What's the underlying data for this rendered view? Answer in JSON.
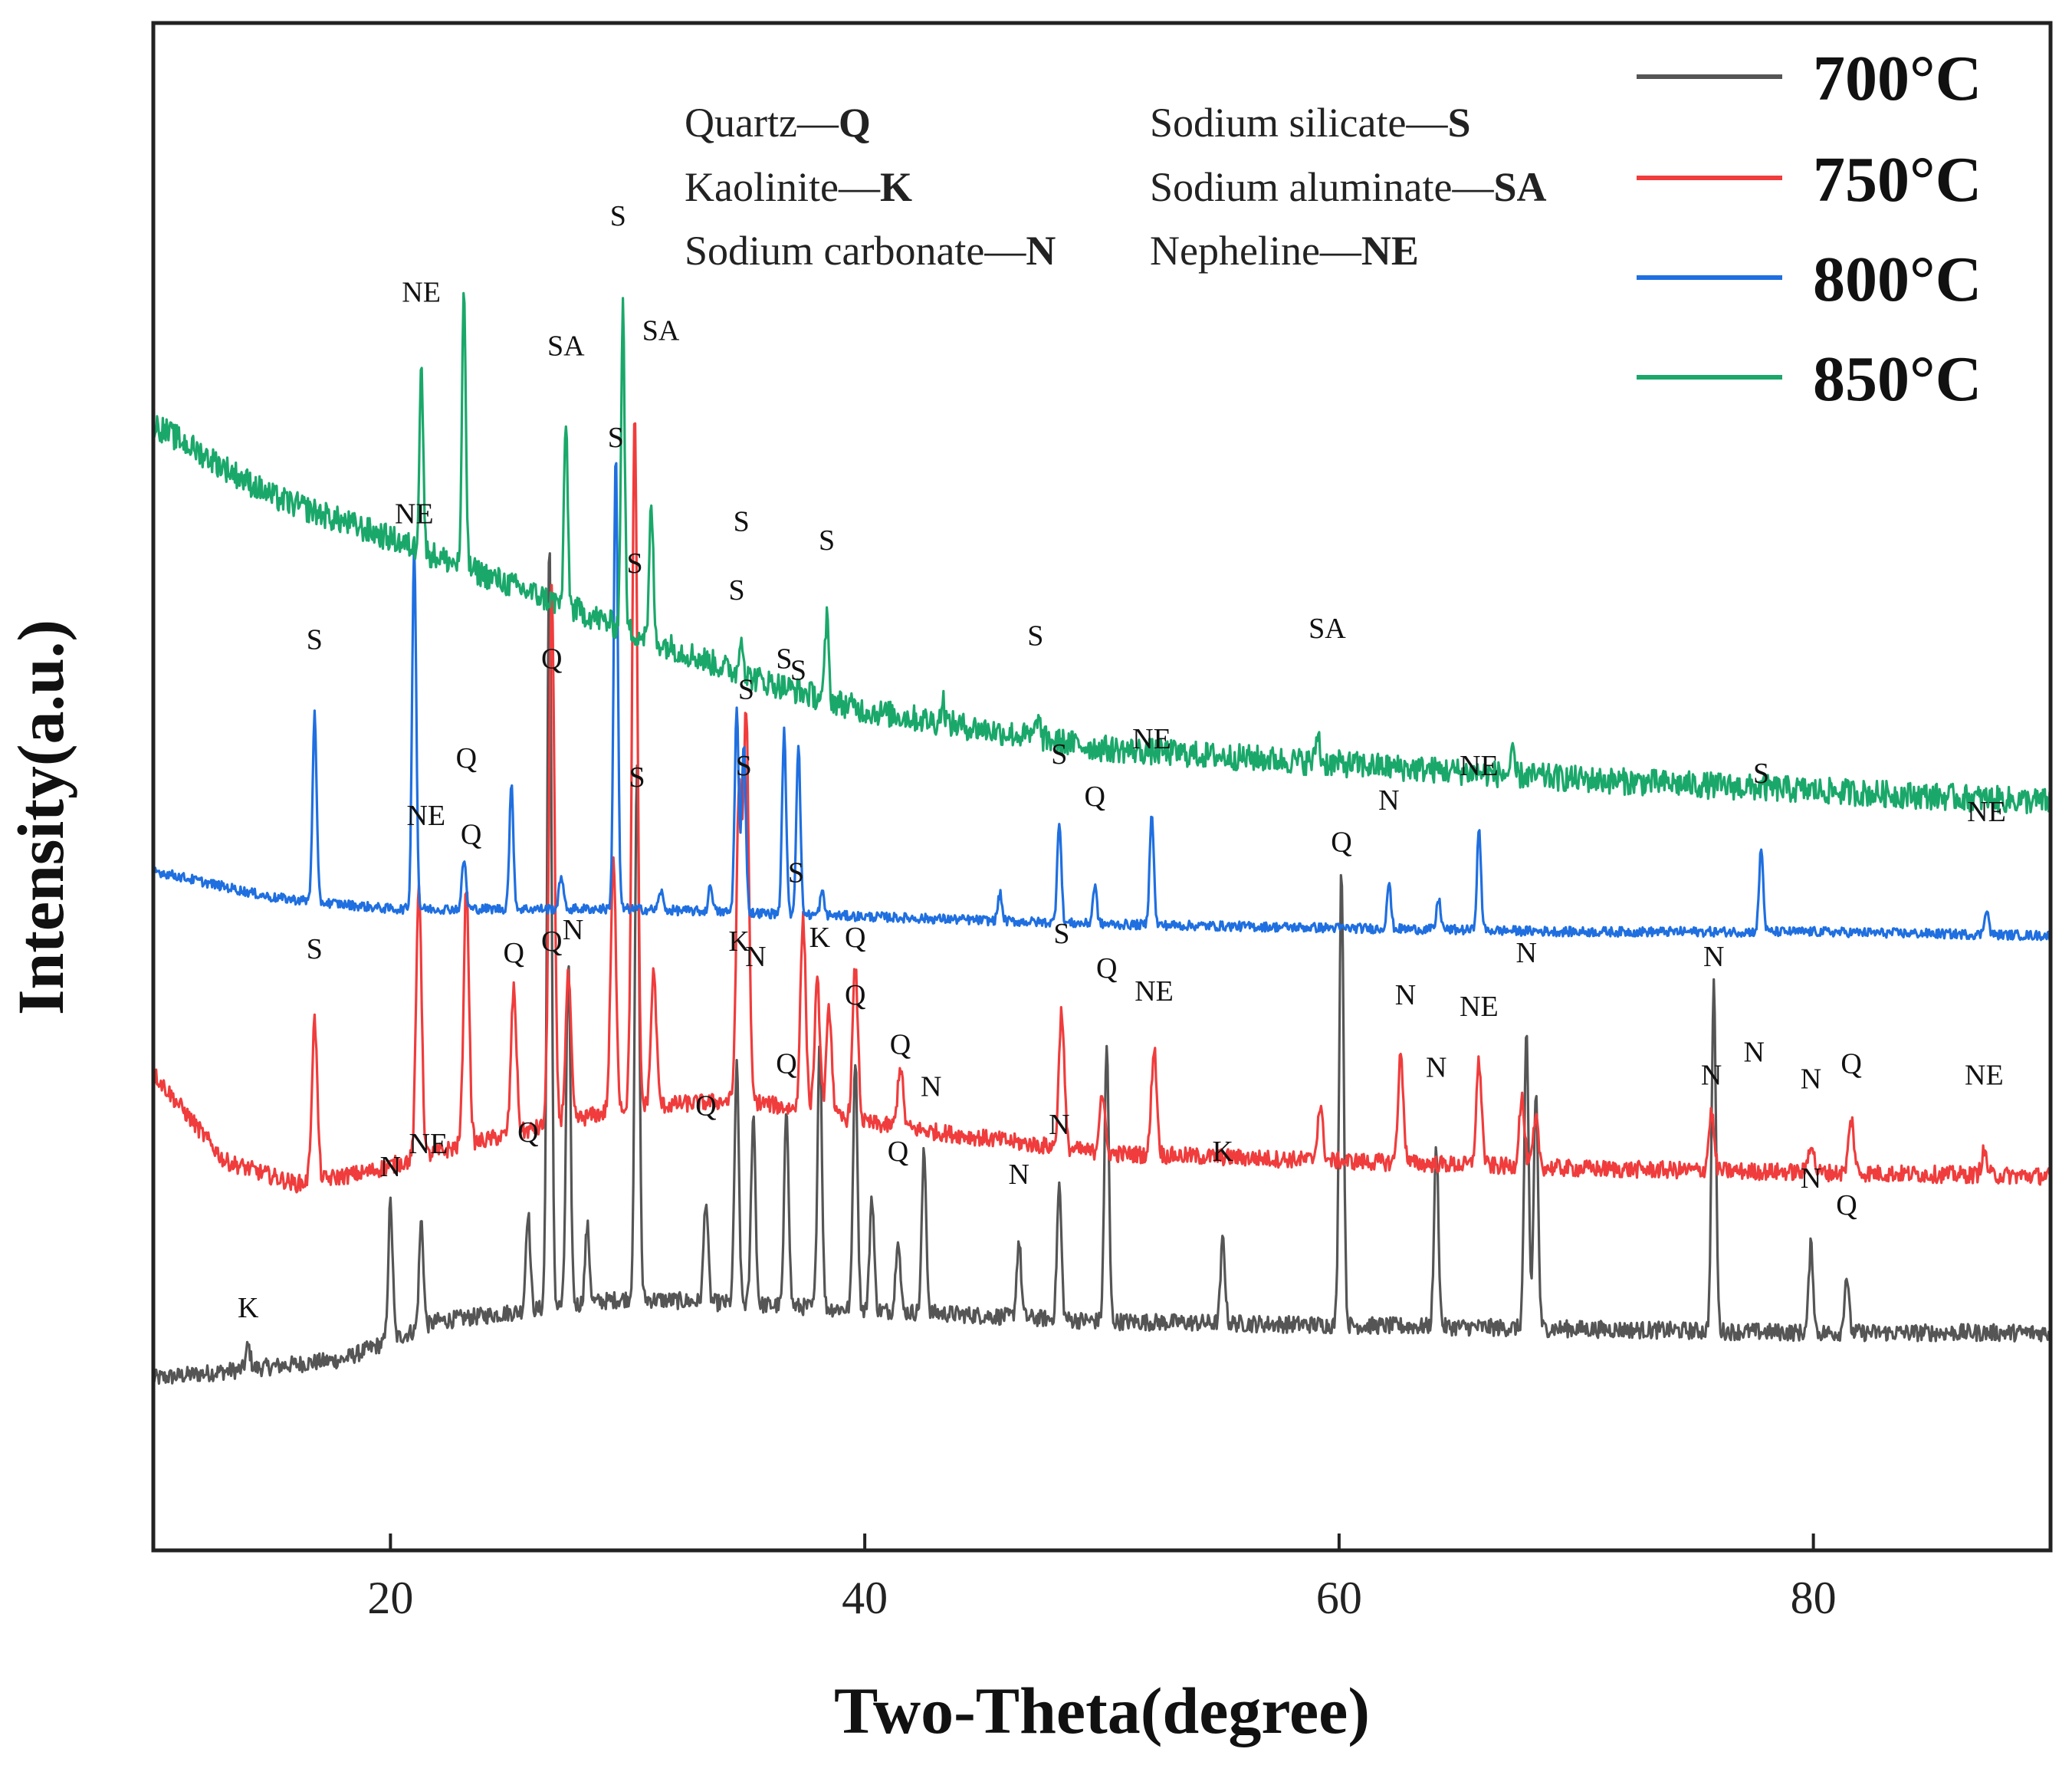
{
  "chart_data": {
    "type": "line",
    "xlabel": "Two-Theta(degree)",
    "ylabel": "Intensity(a.u.)",
    "xlim": [
      10,
      90
    ],
    "xticks": [
      20,
      40,
      60,
      80
    ],
    "grid": false,
    "legend_position": "top-right",
    "series": [
      {
        "name": "700°C",
        "color": "#555555",
        "baseline": [
          [
            10,
            7.5
          ],
          [
            18,
            8.0
          ],
          [
            22,
            9.0
          ],
          [
            30,
            9.6
          ],
          [
            40,
            9.3
          ],
          [
            50,
            9.0
          ],
          [
            60,
            8.9
          ],
          [
            70,
            8.8
          ],
          [
            80,
            8.7
          ],
          [
            90,
            8.7
          ]
        ],
        "peaks": [
          [
            14.0,
            0.6
          ],
          [
            20.0,
            3.6
          ],
          [
            21.3,
            2.8
          ],
          [
            25.8,
            2.6
          ],
          [
            26.7,
            20.2
          ],
          [
            27.5,
            8.9
          ],
          [
            28.3,
            2.0
          ],
          [
            30.4,
            14.0
          ],
          [
            33.3,
            2.7
          ],
          [
            34.6,
            6.2
          ],
          [
            35.3,
            5.0
          ],
          [
            36.7,
            5.2
          ],
          [
            38.1,
            7.0
          ],
          [
            39.6,
            6.6
          ],
          [
            40.3,
            3.0
          ],
          [
            41.4,
            2.0
          ],
          [
            42.5,
            4.2
          ],
          [
            46.5,
            2.0
          ],
          [
            48.2,
            3.5
          ],
          [
            50.2,
            7.2
          ],
          [
            55.1,
            2.2
          ],
          [
            60.1,
            12.0
          ],
          [
            64.1,
            4.7
          ],
          [
            67.9,
            7.6
          ],
          [
            68.3,
            6.2
          ],
          [
            75.8,
            9.0
          ],
          [
            79.9,
            2.3
          ],
          [
            81.4,
            1.5
          ]
        ]
      },
      {
        "name": "750°C",
        "color": "#f03c3c",
        "baseline": [
          [
            10,
            15.5
          ],
          [
            13,
            13.2
          ],
          [
            16,
            12.6
          ],
          [
            19,
            12.9
          ],
          [
            23,
            13.6
          ],
          [
            30,
            14.6
          ],
          [
            35,
            14.8
          ],
          [
            40,
            14.2
          ],
          [
            50,
            13.4
          ],
          [
            60,
            13.2
          ],
          [
            70,
            13.0
          ],
          [
            80,
            12.9
          ],
          [
            90,
            12.8
          ]
        ],
        "peaks": [
          [
            16.8,
            4.2
          ],
          [
            21.2,
            7.2
          ],
          [
            23.2,
            6.8
          ],
          [
            25.2,
            3.8
          ],
          [
            26.8,
            14.0
          ],
          [
            27.5,
            3.8
          ],
          [
            29.4,
            6.5
          ],
          [
            30.3,
            18.0
          ],
          [
            31.1,
            3.5
          ],
          [
            34.7,
            8.0
          ],
          [
            35.0,
            10.0
          ],
          [
            37.4,
            5.0
          ],
          [
            38.0,
            3.4
          ],
          [
            38.5,
            2.8
          ],
          [
            39.6,
            4.0
          ],
          [
            41.5,
            1.6
          ],
          [
            48.3,
            3.6
          ],
          [
            50.0,
            1.6
          ],
          [
            52.2,
            2.8
          ],
          [
            59.2,
            1.4
          ],
          [
            62.6,
            2.8
          ],
          [
            65.9,
            2.7
          ],
          [
            67.7,
            1.8
          ],
          [
            68.3,
            1.2
          ],
          [
            75.7,
            1.5
          ],
          [
            79.9,
            0.8
          ],
          [
            81.6,
            1.4
          ],
          [
            87.2,
            0.6
          ]
        ]
      },
      {
        "name": "800°C",
        "color": "#1f6fe0",
        "baseline": [
          [
            10,
            20.8
          ],
          [
            15,
            20.1
          ],
          [
            20,
            19.8
          ],
          [
            30,
            19.8
          ],
          [
            40,
            19.6
          ],
          [
            50,
            19.4
          ],
          [
            60,
            19.3
          ],
          [
            70,
            19.2
          ],
          [
            80,
            19.2
          ],
          [
            90,
            19.1
          ]
        ],
        "peaks": [
          [
            16.8,
            4.9
          ],
          [
            21.0,
            9.6
          ],
          [
            23.1,
            1.3
          ],
          [
            25.1,
            3.2
          ],
          [
            27.2,
            0.9
          ],
          [
            29.5,
            11.9
          ],
          [
            31.4,
            0.5
          ],
          [
            33.5,
            0.7
          ],
          [
            34.6,
            5.3
          ],
          [
            34.9,
            4.5
          ],
          [
            36.6,
            4.8
          ],
          [
            37.2,
            4.5
          ],
          [
            38.2,
            0.6
          ],
          [
            45.7,
            0.7
          ],
          [
            48.2,
            2.7
          ],
          [
            49.7,
            1.0
          ],
          [
            52.1,
            3.0
          ],
          [
            62.1,
            1.2
          ],
          [
            64.2,
            0.8
          ],
          [
            65.9,
            2.6
          ],
          [
            77.8,
            2.2
          ],
          [
            87.3,
            0.7
          ]
        ]
      },
      {
        "name": "850°C",
        "color": "#1aa86a",
        "baseline": [
          [
            10,
            32.5
          ],
          [
            15,
            30.6
          ],
          [
            20,
            29.5
          ],
          [
            25,
            28.3
          ],
          [
            30,
            27.1
          ],
          [
            35,
            25.9
          ],
          [
            40,
            25.0
          ],
          [
            45,
            24.5
          ],
          [
            50,
            24.0
          ],
          [
            60,
            23.6
          ],
          [
            70,
            23.2
          ],
          [
            80,
            22.9
          ],
          [
            90,
            22.6
          ]
        ],
        "peaks": [
          [
            21.3,
            5.0
          ],
          [
            23.1,
            7.2
          ],
          [
            27.4,
            4.8
          ],
          [
            29.8,
            8.4
          ],
          [
            31.0,
            3.6
          ],
          [
            34.8,
            1.1
          ],
          [
            38.4,
            2.1
          ],
          [
            43.3,
            0.6
          ],
          [
            47.3,
            0.6
          ],
          [
            59.1,
            0.8
          ],
          [
            67.3,
            0.5
          ]
        ]
      }
    ],
    "phase_key": [
      {
        "name": "Quartz—",
        "symbol": "Q"
      },
      {
        "name": "Kaolinite—",
        "symbol": "K"
      },
      {
        "name": "Sodium carbonate—",
        "symbol": "N"
      },
      {
        "name": "Sodium silicate—",
        "symbol": "S"
      },
      {
        "name": "Sodium aluminate—",
        "symbol": "SA"
      },
      {
        "name": "Nepheline—",
        "symbol": "NE"
      }
    ],
    "annotations": [
      {
        "series": 0,
        "x": 14.0,
        "y": 9.1,
        "text": "K"
      },
      {
        "series": 0,
        "x": 20.0,
        "y": 12.8,
        "text": "N"
      },
      {
        "series": 0,
        "x": 21.6,
        "y": 13.4,
        "text": "NE"
      },
      {
        "series": 0,
        "x": 25.8,
        "y": 13.7,
        "text": "Q"
      },
      {
        "series": 0,
        "x": 27.7,
        "y": 19.0,
        "text": "N"
      },
      {
        "series": 0,
        "x": 30.4,
        "y": 23.0,
        "text": "S"
      },
      {
        "series": 0,
        "x": 33.3,
        "y": 14.4,
        "text": "Q"
      },
      {
        "series": 0,
        "x": 34.7,
        "y": 18.7,
        "text": "K"
      },
      {
        "series": 0,
        "x": 35.4,
        "y": 18.3,
        "text": "N"
      },
      {
        "series": 0,
        "x": 36.7,
        "y": 15.5,
        "text": "Q"
      },
      {
        "series": 0,
        "x": 38.1,
        "y": 18.8,
        "text": "K"
      },
      {
        "series": 0,
        "x": 39.6,
        "y": 17.3,
        "text": "Q"
      },
      {
        "series": 0,
        "x": 41.4,
        "y": 13.2,
        "text": "Q"
      },
      {
        "series": 0,
        "x": 42.8,
        "y": 14.9,
        "text": "N"
      },
      {
        "series": 0,
        "x": 46.5,
        "y": 12.6,
        "text": "N"
      },
      {
        "series": 0,
        "x": 48.2,
        "y": 13.9,
        "text": "N"
      },
      {
        "series": 0,
        "x": 50.2,
        "y": 18.0,
        "text": "Q"
      },
      {
        "series": 0,
        "x": 55.1,
        "y": 13.2,
        "text": "K"
      },
      {
        "series": 0,
        "x": 60.1,
        "y": 21.3,
        "text": "Q"
      },
      {
        "series": 0,
        "x": 64.1,
        "y": 15.4,
        "text": "N"
      },
      {
        "series": 0,
        "x": 67.9,
        "y": 18.4,
        "text": "N"
      },
      {
        "series": 0,
        "x": 75.8,
        "y": 18.3,
        "text": "N"
      },
      {
        "series": 0,
        "x": 77.5,
        "y": 15.8,
        "text": "N"
      },
      {
        "series": 0,
        "x": 79.9,
        "y": 12.5,
        "text": "N"
      },
      {
        "series": 0,
        "x": 81.4,
        "y": 11.8,
        "text": "Q"
      },
      {
        "series": 1,
        "x": 16.8,
        "y": 18.5,
        "text": "S"
      },
      {
        "series": 1,
        "x": 21.5,
        "y": 22.0,
        "text": "NE"
      },
      {
        "series": 1,
        "x": 23.4,
        "y": 21.5,
        "text": "Q"
      },
      {
        "series": 1,
        "x": 25.2,
        "y": 18.4,
        "text": "Q"
      },
      {
        "series": 1,
        "x": 26.8,
        "y": 18.7,
        "text": "Q"
      },
      {
        "series": 1,
        "x": 30.3,
        "y": 28.6,
        "text": "S"
      },
      {
        "series": 1,
        "x": 35.0,
        "y": 25.3,
        "text": "S"
      },
      {
        "series": 1,
        "x": 37.1,
        "y": 20.5,
        "text": "S"
      },
      {
        "series": 1,
        "x": 39.6,
        "y": 18.8,
        "text": "Q"
      },
      {
        "series": 1,
        "x": 41.5,
        "y": 16.0,
        "text": "Q"
      },
      {
        "series": 1,
        "x": 48.3,
        "y": 18.9,
        "text": "S"
      },
      {
        "series": 1,
        "x": 52.2,
        "y": 17.4,
        "text": "NE"
      },
      {
        "series": 1,
        "x": 62.8,
        "y": 17.3,
        "text": "N"
      },
      {
        "series": 1,
        "x": 65.9,
        "y": 17.0,
        "text": "NE"
      },
      {
        "series": 1,
        "x": 75.7,
        "y": 15.2,
        "text": "N"
      },
      {
        "series": 1,
        "x": 79.9,
        "y": 15.1,
        "text": "N"
      },
      {
        "series": 1,
        "x": 81.6,
        "y": 15.5,
        "text": "Q"
      },
      {
        "series": 1,
        "x": 87.2,
        "y": 15.2,
        "text": "NE"
      },
      {
        "series": 2,
        "x": 16.8,
        "y": 26.6,
        "text": "S"
      },
      {
        "series": 2,
        "x": 21.0,
        "y": 29.9,
        "text": "NE"
      },
      {
        "series": 2,
        "x": 23.2,
        "y": 23.5,
        "text": "Q"
      },
      {
        "series": 2,
        "x": 26.8,
        "y": 26.1,
        "text": "Q"
      },
      {
        "series": 2,
        "x": 29.5,
        "y": 31.9,
        "text": "S"
      },
      {
        "series": 2,
        "x": 34.6,
        "y": 27.9,
        "text": "S"
      },
      {
        "series": 2,
        "x": 34.9,
        "y": 23.3,
        "text": "S"
      },
      {
        "series": 2,
        "x": 36.6,
        "y": 26.1,
        "text": "S"
      },
      {
        "series": 2,
        "x": 37.2,
        "y": 25.8,
        "text": "S"
      },
      {
        "series": 2,
        "x": 48.2,
        "y": 23.6,
        "text": "S"
      },
      {
        "series": 2,
        "x": 49.7,
        "y": 22.5,
        "text": "Q"
      },
      {
        "series": 2,
        "x": 52.1,
        "y": 24.0,
        "text": "NE"
      },
      {
        "series": 2,
        "x": 62.1,
        "y": 22.4,
        "text": "N"
      },
      {
        "series": 2,
        "x": 65.9,
        "y": 23.3,
        "text": "NE"
      },
      {
        "series": 2,
        "x": 77.8,
        "y": 23.1,
        "text": "S"
      },
      {
        "series": 2,
        "x": 87.3,
        "y": 22.1,
        "text": "NE"
      },
      {
        "series": 3,
        "x": 21.3,
        "y": 35.7,
        "text": "NE"
      },
      {
        "series": 3,
        "x": 27.4,
        "y": 34.3,
        "text": "SA"
      },
      {
        "series": 3,
        "x": 29.6,
        "y": 37.7,
        "text": "S"
      },
      {
        "series": 3,
        "x": 31.4,
        "y": 34.7,
        "text": "SA"
      },
      {
        "series": 3,
        "x": 34.8,
        "y": 29.7,
        "text": "S"
      },
      {
        "series": 3,
        "x": 38.4,
        "y": 29.2,
        "text": "S"
      },
      {
        "series": 3,
        "x": 47.2,
        "y": 26.7,
        "text": "S"
      },
      {
        "series": 3,
        "x": 59.5,
        "y": 26.9,
        "text": "SA"
      }
    ]
  }
}
